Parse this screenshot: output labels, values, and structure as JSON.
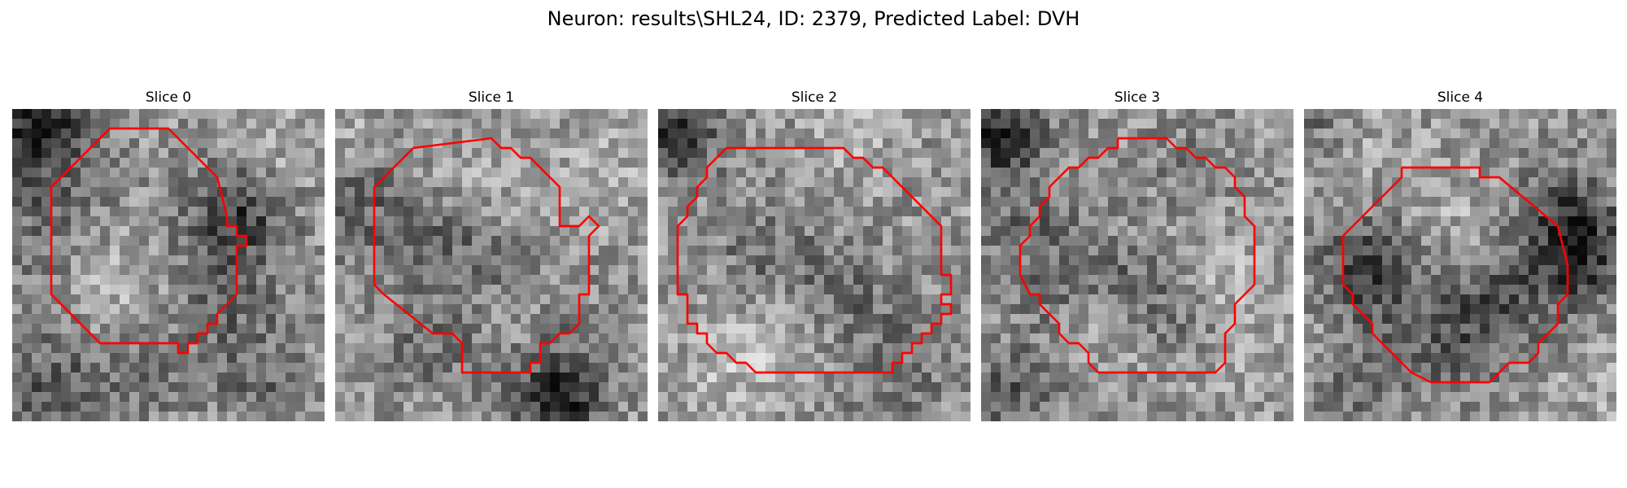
{
  "figure": {
    "title": "Neuron: results\\SHL24, ID: 2379, Predicted Label: DVH"
  },
  "contour_color": "#ff0000",
  "panels": [
    {
      "title": "Slice 0",
      "image": "grayscale-noise",
      "overlay": "red-contour"
    },
    {
      "title": "Slice 1",
      "image": "grayscale-noise",
      "overlay": "red-contour"
    },
    {
      "title": "Slice 2",
      "image": "grayscale-noise",
      "overlay": "red-contour"
    },
    {
      "title": "Slice 3",
      "image": "grayscale-noise",
      "overlay": "red-contour"
    },
    {
      "title": "Slice 4",
      "image": "grayscale-noise",
      "overlay": "red-contour"
    }
  ]
}
